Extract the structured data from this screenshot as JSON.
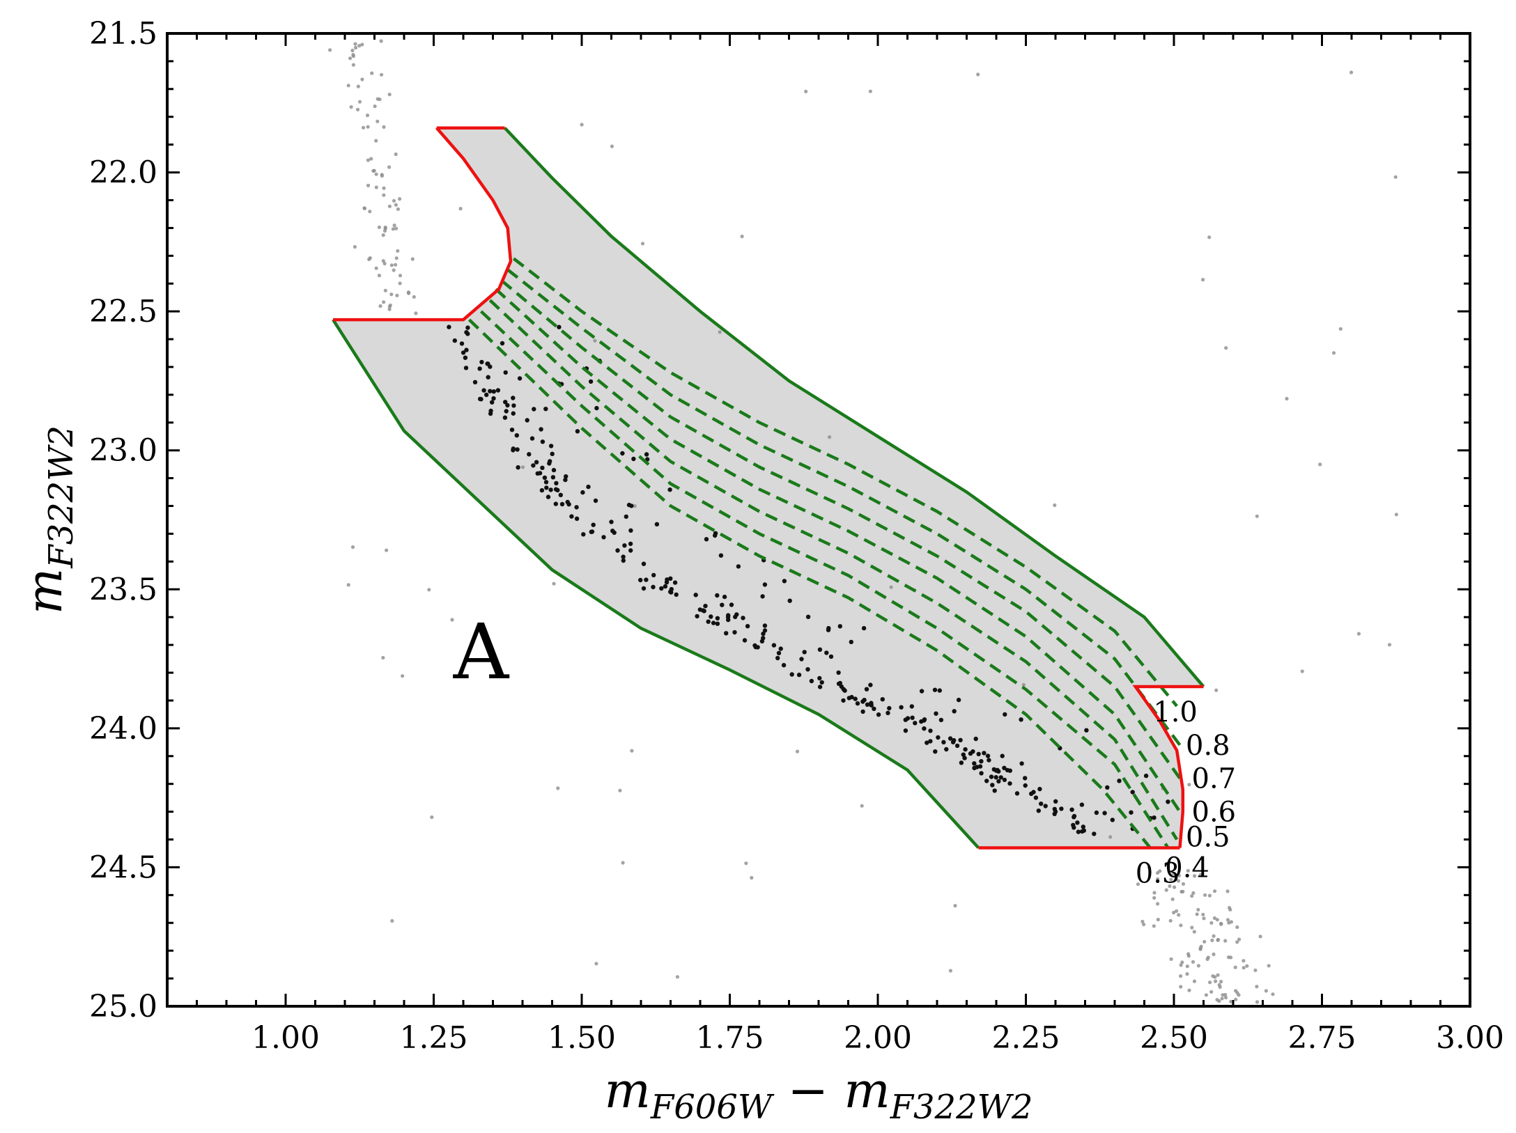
{
  "chart_data": {
    "type": "scatter",
    "xlabel_main": "m",
    "xlabel_sub1": "F606W",
    "xlabel_minus": " − ",
    "xlabel_main2": "m",
    "xlabel_sub2": "F322W2",
    "ylabel_main": "m",
    "ylabel_sub": "F322W2",
    "xlim": [
      0.8,
      3.0
    ],
    "ylim": [
      25.0,
      21.5
    ],
    "y_inverted": true,
    "xticks": [
      "1.00",
      "1.25",
      "1.50",
      "1.75",
      "2.00",
      "2.25",
      "2.50",
      "2.75",
      "3.00"
    ],
    "xtick_values": [
      1.0,
      1.25,
      1.5,
      1.75,
      2.0,
      2.25,
      2.5,
      2.75,
      3.0
    ],
    "yticks": [
      "21.5",
      "22.0",
      "22.5",
      "23.0",
      "23.5",
      "24.0",
      "24.5",
      "25.0"
    ],
    "ytick_values": [
      21.5,
      22.0,
      22.5,
      23.0,
      23.5,
      24.0,
      24.5,
      25.0
    ],
    "grid": false,
    "panel_label": "A",
    "colors": {
      "region_fill": "#d9d9d9",
      "envelope": "#1a7a1a",
      "dashed": "#1a7a1a",
      "selection_edge": "#ee1111",
      "field_points": "#8c8c8c",
      "selected_points": "#111111"
    },
    "region": {
      "left_edge": [
        [
          1.08,
          22.53
        ],
        [
          1.2,
          22.93
        ],
        [
          1.3,
          23.13
        ],
        [
          1.45,
          23.43
        ],
        [
          1.6,
          23.64
        ],
        [
          1.75,
          23.79
        ],
        [
          1.9,
          23.95
        ],
        [
          2.05,
          24.15
        ],
        [
          2.17,
          24.43
        ]
      ],
      "right_edge": [
        [
          1.37,
          21.84
        ],
        [
          1.45,
          22.02
        ],
        [
          1.55,
          22.23
        ],
        [
          1.7,
          22.5
        ],
        [
          1.85,
          22.75
        ],
        [
          2.0,
          22.95
        ],
        [
          2.15,
          23.15
        ],
        [
          2.3,
          23.38
        ],
        [
          2.45,
          23.6
        ],
        [
          2.55,
          23.85
        ]
      ],
      "top_cut": [
        [
          1.255,
          21.84
        ],
        [
          1.37,
          21.84
        ]
      ],
      "bottom_cut": [
        [
          2.17,
          24.43
        ],
        [
          2.51,
          24.43
        ]
      ],
      "red_top_hook": [
        [
          1.255,
          21.84
        ],
        [
          1.3,
          21.95
        ],
        [
          1.35,
          22.1
        ],
        [
          1.375,
          22.2
        ],
        [
          1.38,
          22.32
        ],
        [
          1.36,
          22.42
        ],
        [
          1.3,
          22.53
        ],
        [
          1.08,
          22.53
        ]
      ],
      "red_right_hook": [
        [
          2.55,
          23.85
        ],
        [
          2.435,
          23.85
        ],
        [
          2.475,
          23.97
        ],
        [
          2.505,
          24.08
        ],
        [
          2.515,
          24.22
        ],
        [
          2.515,
          24.3
        ],
        [
          2.51,
          24.43
        ]
      ]
    },
    "series": [
      {
        "name": "1.0",
        "label_at": [
          2.465,
          23.94
        ],
        "points": [
          [
            1.385,
            22.31
          ],
          [
            1.5,
            22.5
          ],
          [
            1.65,
            22.72
          ],
          [
            1.8,
            22.9
          ],
          [
            1.95,
            23.05
          ],
          [
            2.1,
            23.22
          ],
          [
            2.25,
            23.42
          ],
          [
            2.4,
            23.65
          ],
          [
            2.505,
            23.92
          ]
        ]
      },
      {
        "name": "0.8",
        "label_at": [
          2.52,
          24.06
        ],
        "points": [
          [
            1.375,
            22.35
          ],
          [
            1.5,
            22.56
          ],
          [
            1.65,
            22.8
          ],
          [
            1.8,
            22.98
          ],
          [
            1.95,
            23.13
          ],
          [
            2.1,
            23.3
          ],
          [
            2.25,
            23.5
          ],
          [
            2.4,
            23.75
          ],
          [
            2.51,
            24.06
          ]
        ]
      },
      {
        "name": "0.7",
        "label_at": [
          2.53,
          24.18
        ],
        "points": [
          [
            1.365,
            22.39
          ],
          [
            1.5,
            22.63
          ],
          [
            1.65,
            22.88
          ],
          [
            1.8,
            23.06
          ],
          [
            1.95,
            23.21
          ],
          [
            2.1,
            23.38
          ],
          [
            2.25,
            23.58
          ],
          [
            2.4,
            23.85
          ],
          [
            2.51,
            24.18
          ]
        ]
      },
      {
        "name": "0.6",
        "label_at": [
          2.53,
          24.3
        ],
        "points": [
          [
            1.355,
            22.42
          ],
          [
            1.5,
            22.7
          ],
          [
            1.65,
            22.96
          ],
          [
            1.8,
            23.14
          ],
          [
            1.95,
            23.29
          ],
          [
            2.1,
            23.46
          ],
          [
            2.25,
            23.67
          ],
          [
            2.4,
            23.95
          ],
          [
            2.51,
            24.3
          ]
        ]
      },
      {
        "name": "0.5",
        "label_at": [
          2.52,
          24.39
        ],
        "points": [
          [
            1.345,
            22.46
          ],
          [
            1.5,
            22.77
          ],
          [
            1.65,
            23.04
          ],
          [
            1.8,
            23.22
          ],
          [
            1.95,
            23.37
          ],
          [
            2.1,
            23.55
          ],
          [
            2.25,
            23.76
          ],
          [
            2.4,
            24.04
          ],
          [
            2.505,
            24.4
          ]
        ]
      },
      {
        "name": "0.4",
        "label_at": [
          2.485,
          24.5
        ],
        "points": [
          [
            1.33,
            22.5
          ],
          [
            1.5,
            22.84
          ],
          [
            1.65,
            23.12
          ],
          [
            1.8,
            23.3
          ],
          [
            1.95,
            23.45
          ],
          [
            2.1,
            23.64
          ],
          [
            2.25,
            23.86
          ],
          [
            2.4,
            24.13
          ],
          [
            2.49,
            24.43
          ]
        ]
      },
      {
        "name": "0.3",
        "label_at": [
          2.435,
          24.52
        ],
        "points": [
          [
            1.31,
            22.53
          ],
          [
            1.5,
            22.92
          ],
          [
            1.65,
            23.2
          ],
          [
            1.8,
            23.38
          ],
          [
            1.95,
            23.53
          ],
          [
            2.1,
            23.72
          ],
          [
            2.25,
            23.95
          ],
          [
            2.38,
            24.22
          ],
          [
            2.46,
            24.43
          ]
        ]
      }
    ],
    "field_stars_note_count": 260,
    "selected_stars_note_count": 330
  }
}
